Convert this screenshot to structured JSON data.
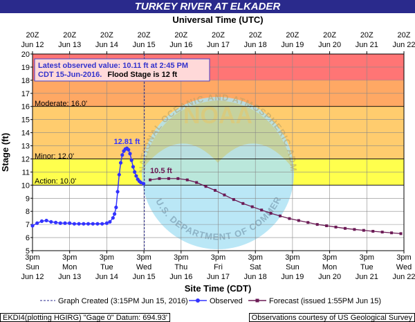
{
  "title": "TURKEY RIVER AT ELKADER",
  "top_axis_title": "Universal Time (UTC)",
  "bottom_axis_title": "Site Time (CDT)",
  "y_axis_title": "Stage (ft)",
  "info_box": {
    "line1": "Latest observed value: 10.11 ft at 2:45 PM",
    "line2": "CDT 15-Jun-2016.",
    "line2_suffix": "Flood Stage is 12 ft"
  },
  "stage_labels": {
    "moderate": "Moderate: 16.0'",
    "minor": "Minor: 12.0'",
    "action": "Action: 10.0'"
  },
  "peak_label": "12.81 ft",
  "forecast_peak_label": "10.5 ft",
  "watermark": {
    "noaa": "NOAA",
    "arc_top": "NATIONAL OCEANIC AND ATMOSPHERIC ADMINISTRATION",
    "arc_bottom": "U.S. DEPARTMENT OF COMMERCE"
  },
  "legend": {
    "graph_created": "Graph Created (3:15PM Jun 15, 2016)",
    "observed": "Observed",
    "forecast": "Forecast (issued 1:55PM Jun 15)"
  },
  "footer": {
    "left": "EKDI4(plotting HGIRG) \"Gage 0\" Datum: 694.93'",
    "right": "Observations courtesy of US Geological Survey"
  },
  "colors": {
    "title_bg": "#2a2a8c",
    "major_band": "#ff7575",
    "moderate_band": "#ffa864",
    "minor_band": "#ffcc6e",
    "action_band": "#ffff4d",
    "observed": "#3333ff",
    "forecast": "#6b1a55",
    "info_border": "#4444cc"
  },
  "chart_data": {
    "type": "line",
    "ylabel": "Stage (ft)",
    "xlabel": "Site Time (CDT)",
    "ylim": [
      5,
      20
    ],
    "y_ticks": [
      "5",
      "6",
      "7",
      "8",
      "9",
      "10",
      "11",
      "12",
      "13",
      "14",
      "15",
      "16",
      "17",
      "18",
      "19",
      "20"
    ],
    "grid": true,
    "bottom_ticks": [
      {
        "time": "3pm",
        "day": "Sun",
        "date": "Jun 12"
      },
      {
        "time": "3pm",
        "day": "Mon",
        "date": "Jun 13"
      },
      {
        "time": "3pm",
        "day": "Tue",
        "date": "Jun 14"
      },
      {
        "time": "3pm",
        "day": "Wed",
        "date": "Jun 15"
      },
      {
        "time": "3pm",
        "day": "Thu",
        "date": "Jun 16"
      },
      {
        "time": "3pm",
        "day": "Fri",
        "date": "Jun 17"
      },
      {
        "time": "3pm",
        "day": "Sat",
        "date": "Jun 18"
      },
      {
        "time": "3pm",
        "day": "Sun",
        "date": "Jun 19"
      },
      {
        "time": "3pm",
        "day": "Mon",
        "date": "Jun 20"
      },
      {
        "time": "3pm",
        "day": "Tue",
        "date": "Jun 21"
      },
      {
        "time": "3pm",
        "day": "Wed",
        "date": "Jun 22"
      }
    ],
    "top_ticks": [
      {
        "time": "20Z",
        "date": "Jun 12"
      },
      {
        "time": "20Z",
        "date": "Jun 13"
      },
      {
        "time": "20Z",
        "date": "Jun 14"
      },
      {
        "time": "20Z",
        "date": "Jun 15"
      },
      {
        "time": "20Z",
        "date": "Jun 16"
      },
      {
        "time": "20Z",
        "date": "Jun 17"
      },
      {
        "time": "20Z",
        "date": "Jun 18"
      },
      {
        "time": "20Z",
        "date": "Jun 19"
      },
      {
        "time": "20Z",
        "date": "Jun 20"
      },
      {
        "time": "20Z",
        "date": "Jun 21"
      },
      {
        "time": "20Z",
        "date": "Jun 22"
      }
    ],
    "stage_bands": [
      {
        "name": "Major",
        "from": 18,
        "to": 20
      },
      {
        "name": "Moderate",
        "from": 16,
        "to": 18
      },
      {
        "name": "Minor",
        "from": 12,
        "to": 16
      },
      {
        "name": "Action",
        "from": 10,
        "to": 12
      }
    ],
    "graph_created": "2016-06-15 15:15",
    "series": [
      {
        "name": "Observed",
        "points": [
          [
            "2016-06-12 15:00",
            6.9
          ],
          [
            "2016-06-12 18:00",
            7.1
          ],
          [
            "2016-06-12 21:00",
            7.25
          ],
          [
            "2016-06-13 00:00",
            7.3
          ],
          [
            "2016-06-13 03:00",
            7.2
          ],
          [
            "2016-06-13 06:00",
            7.15
          ],
          [
            "2016-06-13 09:00",
            7.1
          ],
          [
            "2016-06-13 12:00",
            7.1
          ],
          [
            "2016-06-13 15:00",
            7.1
          ],
          [
            "2016-06-13 18:00",
            7.05
          ],
          [
            "2016-06-13 21:00",
            7.05
          ],
          [
            "2016-06-14 00:00",
            7.05
          ],
          [
            "2016-06-14 03:00",
            7.05
          ],
          [
            "2016-06-14 06:00",
            7.05
          ],
          [
            "2016-06-14 09:00",
            7.05
          ],
          [
            "2016-06-14 12:00",
            7.05
          ],
          [
            "2016-06-14 15:00",
            7.1
          ],
          [
            "2016-06-14 17:00",
            7.2
          ],
          [
            "2016-06-14 19:00",
            7.5
          ],
          [
            "2016-06-14 20:00",
            7.8
          ],
          [
            "2016-06-14 21:00",
            8.3
          ],
          [
            "2016-06-14 22:00",
            9.5
          ],
          [
            "2016-06-14 23:00",
            10.8
          ],
          [
            "2016-06-15 00:00",
            11.7
          ],
          [
            "2016-06-15 01:00",
            12.3
          ],
          [
            "2016-06-15 02:00",
            12.6
          ],
          [
            "2016-06-15 03:00",
            12.75
          ],
          [
            "2016-06-15 04:00",
            12.81
          ],
          [
            "2016-06-15 05:00",
            12.7
          ],
          [
            "2016-06-15 06:00",
            12.4
          ],
          [
            "2016-06-15 07:00",
            11.9
          ],
          [
            "2016-06-15 08:00",
            11.4
          ],
          [
            "2016-06-15 09:00",
            11.0
          ],
          [
            "2016-06-15 10:00",
            10.7
          ],
          [
            "2016-06-15 11:00",
            10.45
          ],
          [
            "2016-06-15 12:00",
            10.3
          ],
          [
            "2016-06-15 13:00",
            10.2
          ],
          [
            "2016-06-15 14:45",
            10.11
          ]
        ]
      },
      {
        "name": "Forecast (issued 1:55PM Jun 15)",
        "points": [
          [
            "2016-06-15 19:00",
            10.4
          ],
          [
            "2016-06-16 01:00",
            10.5
          ],
          [
            "2016-06-16 07:00",
            10.5
          ],
          [
            "2016-06-16 13:00",
            10.5
          ],
          [
            "2016-06-16 19:00",
            10.4
          ],
          [
            "2016-06-17 01:00",
            10.2
          ],
          [
            "2016-06-17 07:00",
            9.9
          ],
          [
            "2016-06-17 13:00",
            9.6
          ],
          [
            "2016-06-17 19:00",
            9.25
          ],
          [
            "2016-06-18 01:00",
            8.9
          ],
          [
            "2016-06-18 07:00",
            8.6
          ],
          [
            "2016-06-18 13:00",
            8.35
          ],
          [
            "2016-06-18 19:00",
            8.1
          ],
          [
            "2016-06-19 01:00",
            7.85
          ],
          [
            "2016-06-19 07:00",
            7.65
          ],
          [
            "2016-06-19 13:00",
            7.45
          ],
          [
            "2016-06-19 19:00",
            7.3
          ],
          [
            "2016-06-20 01:00",
            7.15
          ],
          [
            "2016-06-20 07:00",
            7.0
          ],
          [
            "2016-06-20 13:00",
            6.9
          ],
          [
            "2016-06-20 19:00",
            6.8
          ],
          [
            "2016-06-21 01:00",
            6.7
          ],
          [
            "2016-06-21 07:00",
            6.62
          ],
          [
            "2016-06-21 13:00",
            6.55
          ],
          [
            "2016-06-21 19:00",
            6.48
          ],
          [
            "2016-06-22 01:00",
            6.42
          ],
          [
            "2016-06-22 07:00",
            6.36
          ],
          [
            "2016-06-22 13:00",
            6.3
          ]
        ]
      }
    ]
  }
}
